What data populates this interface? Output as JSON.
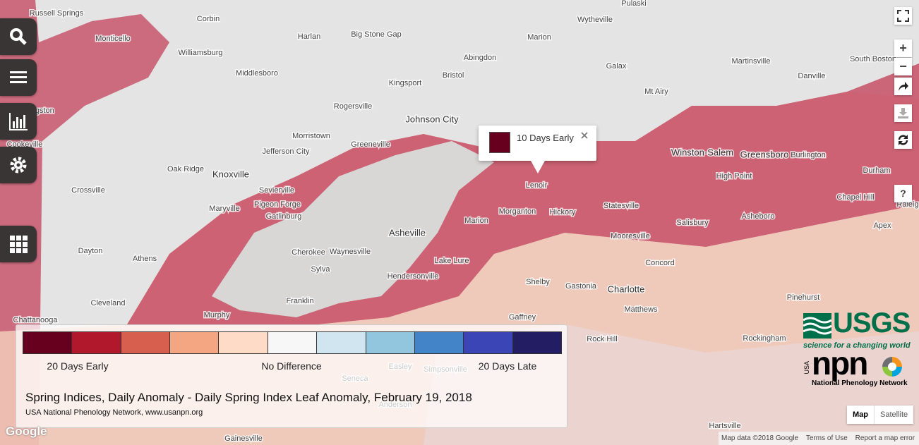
{
  "map": {
    "places": [
      "Russell Springs",
      "Corbin",
      "Monticello",
      "Williamsburg",
      "Harlan",
      "Big Stone Gap",
      "Middlesboro",
      "Kingsport",
      "Bristol",
      "Abingdon",
      "Marion",
      "Wytheville",
      "Pulaski",
      "Galax",
      "Martinsville",
      "South Boston",
      "Danville",
      "Mt Airy",
      "Rogersville",
      "Johnson City",
      "Morristown",
      "Jefferson City",
      "Greeneville",
      "Oak Ridge",
      "Knoxville",
      "Livingston",
      "Cookeville",
      "Crossville",
      "Sevierville",
      "Maryville",
      "Pigeon Forge",
      "Gatlinburg",
      "Dayton",
      "Athens",
      "Asheville",
      "Cherokee",
      "Waynesville",
      "Sylva",
      "Hendersonville",
      "Franklin",
      "Murphy",
      "Cleveland",
      "Chattanooga",
      "Lenoir",
      "Morganton",
      "Hickory",
      "Statesville",
      "Mooresville",
      "Winston-Salem",
      "Greensboro",
      "Burlington",
      "High Point",
      "Durham",
      "Chapel Hill",
      "Raleig",
      "Asheboro",
      "Salisbury",
      "Apex",
      "Concord",
      "Shelby",
      "Gastonia",
      "Charlotte",
      "Matthews",
      "Gaffney",
      "Rock Hill",
      "Lake Lure",
      "Marion",
      "Rockingham",
      "Pinehurst",
      "Easley",
      "Simpsonville",
      "Seneca",
      "Anderson",
      "Gainesville",
      "Hartsville"
    ]
  },
  "popup": {
    "label": "10 Days Early",
    "color": "#67001f"
  },
  "legend": {
    "colors": [
      "#67001f",
      "#b2182b",
      "#d6604d",
      "#f4a582",
      "#fddbc7",
      "#f7f7f7",
      "#d1e5f0",
      "#92c5de",
      "#4383c8",
      "#3b45b5",
      "#231d63"
    ],
    "labels": [
      "20 Days Early",
      "No Difference",
      "20 Days Late"
    ],
    "title": "Spring Indices, Daily Anomaly - Daily Spring Index Leaf Anomaly, February 19, 2018",
    "credit": "USA National Phenology Network, www.usanpn.org"
  },
  "controls": {
    "zoom_in": "+",
    "zoom_out": "−",
    "help": "?",
    "map_types": [
      "Map",
      "Satellite"
    ]
  },
  "attribution": {
    "logo": "Google",
    "data": "Map data ©2018 Google",
    "terms": "Terms of Use",
    "report": "Report a map error"
  },
  "logos": {
    "usgs": "USGS",
    "usgs_tagline": "science for a changing world",
    "npn_prefix": "USA",
    "npn": "npn",
    "npn_name": "National Phenology Network"
  }
}
